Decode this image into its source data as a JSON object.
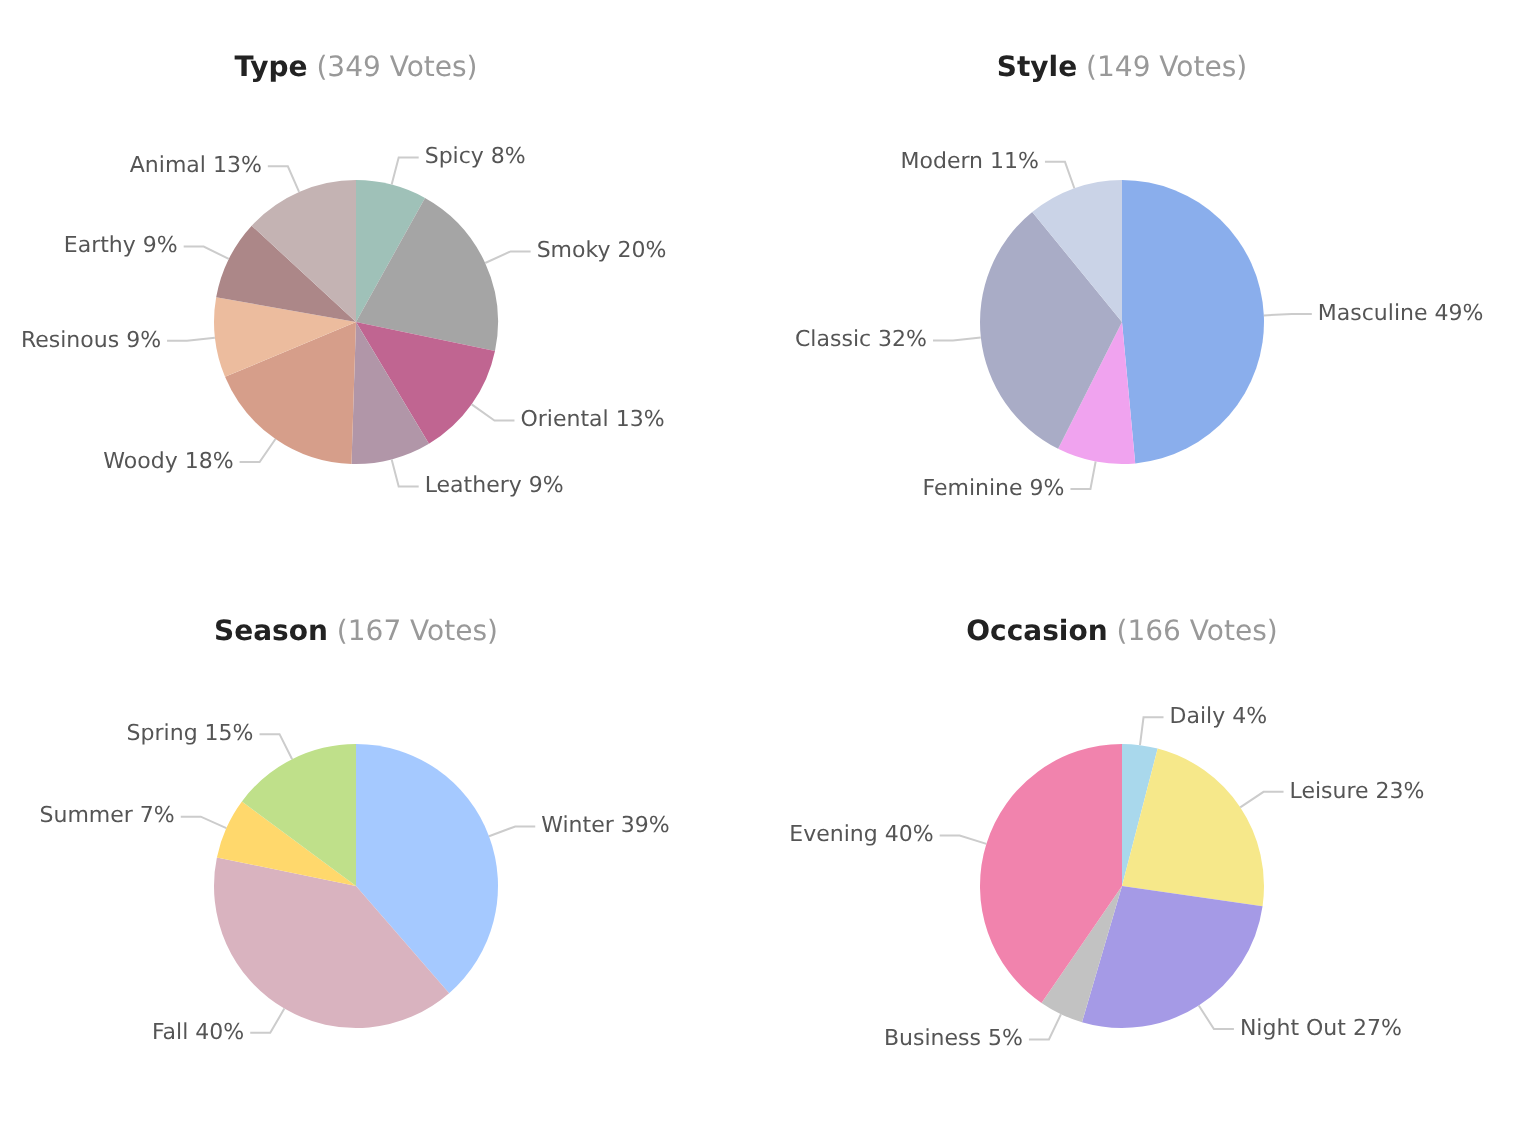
{
  "chart_data": [
    {
      "type": "pie",
      "title": "Type",
      "subtitle": "(349 Votes)",
      "categories": [
        "Spicy",
        "Smoky",
        "Oriental",
        "Leathery",
        "Woody",
        "Resinous",
        "Earthy",
        "Animal"
      ],
      "values": [
        8,
        20,
        13,
        9,
        18,
        9,
        9,
        13
      ],
      "value_labels": [
        "8%",
        "20%",
        "13%",
        "9%",
        "18%",
        "9%",
        "9%",
        "13%"
      ],
      "colors": [
        "#9fc1b8",
        "#a5a5a5",
        "#c06591",
        "#b196a8",
        "#d69e8a",
        "#ecbc9e",
        "#ac8788",
        "#c4b3b3"
      ],
      "legend": false
    },
    {
      "type": "pie",
      "title": "Style",
      "subtitle": "(149 Votes)",
      "categories": [
        "Masculine",
        "Feminine",
        "Classic",
        "Modern"
      ],
      "values": [
        49,
        9,
        32,
        11
      ],
      "value_labels": [
        "49%",
        "9%",
        "32%",
        "11%"
      ],
      "colors": [
        "#8aaeec",
        "#f0a3ef",
        "#a9acc6",
        "#cad3e7"
      ],
      "legend": false
    },
    {
      "type": "pie",
      "title": "Season",
      "subtitle": "(167 Votes)",
      "categories": [
        "Winter",
        "Fall",
        "Summer",
        "Spring"
      ],
      "values": [
        39,
        40,
        7,
        15
      ],
      "value_labels": [
        "39%",
        "40%",
        "7%",
        "15%"
      ],
      "colors": [
        "#a5c9ff",
        "#d9b3bf",
        "#ffd86c",
        "#bfe08a"
      ],
      "legend": false
    },
    {
      "type": "pie",
      "title": "Occasion",
      "subtitle": "(166 Votes)",
      "categories": [
        "Daily",
        "Leisure",
        "Night Out",
        "Business",
        "Evening"
      ],
      "values": [
        4,
        23,
        27,
        5,
        40
      ],
      "value_labels": [
        "4%",
        "23%",
        "27%",
        "5%",
        "40%"
      ],
      "colors": [
        "#a9d8ec",
        "#f6e88a",
        "#a59ae6",
        "#c2c2c2",
        "#f183ad"
      ],
      "legend": false
    }
  ]
}
